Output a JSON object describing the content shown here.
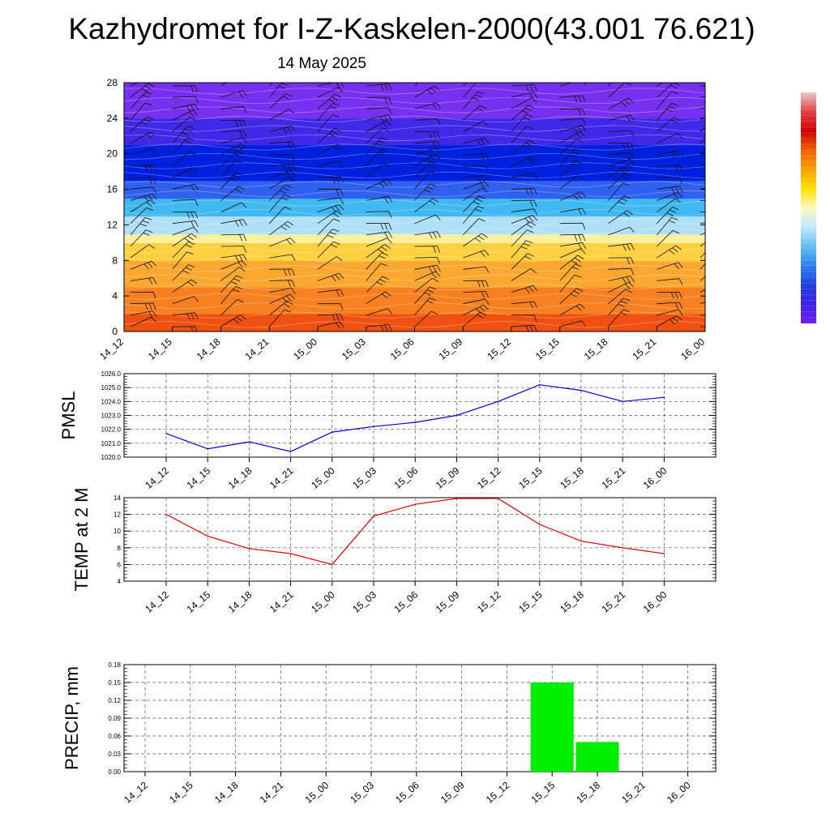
{
  "page": {
    "title": "Kazhydromet for I-Z-Kaskelen-2000(43.001 76.621)",
    "subtitle": "14 May 2025"
  },
  "chart_data": [
    {
      "type": "heatmap",
      "name": "vertical-cross-section",
      "x_categories": [
        "14_12",
        "14_15",
        "14_18",
        "14_21",
        "15_00",
        "15_03",
        "15_06",
        "15_09",
        "15_12",
        "15_15",
        "15_18",
        "15_21",
        "16_00"
      ],
      "y_ticks": [
        0,
        4,
        8,
        12,
        16,
        20,
        24,
        28
      ],
      "ylim": [
        0,
        28
      ],
      "field_color_bands": [
        {
          "from": 0,
          "to": 2,
          "color": "#f05010"
        },
        {
          "from": 2,
          "to": 5,
          "color": "#f88020"
        },
        {
          "from": 5,
          "to": 8,
          "color": "#fca830"
        },
        {
          "from": 8,
          "to": 10,
          "color": "#ffd040"
        },
        {
          "from": 10,
          "to": 11,
          "color": "#fff0a0"
        },
        {
          "from": 11,
          "to": 13,
          "color": "#b0e0f8"
        },
        {
          "from": 13,
          "to": 15,
          "color": "#40b8f0"
        },
        {
          "from": 15,
          "to": 17,
          "color": "#3060f0"
        },
        {
          "from": 17,
          "to": 21,
          "color": "#0020e0"
        },
        {
          "from": 21,
          "to": 24,
          "color": "#4028e8"
        },
        {
          "from": 24,
          "to": 28,
          "color": "#7830f0"
        }
      ],
      "colorbar_colors": [
        "#f0c8c8",
        "#e04040",
        "#d00000",
        "#f06000",
        "#f8a000",
        "#ffe000",
        "#fff8c0",
        "#c0e8ff",
        "#60c0f0",
        "#3080f0",
        "#2040e0",
        "#4020e8",
        "#7020f0"
      ],
      "wind_barbs": true
    },
    {
      "type": "line",
      "name": "pmsl",
      "ylabel": "PMSL",
      "categories": [
        "14_12",
        "14_15",
        "14_18",
        "14_21",
        "15_00",
        "15_03",
        "15_06",
        "15_09",
        "15_12",
        "15_15",
        "15_18",
        "15_21",
        "16_00"
      ],
      "values": [
        1021.7,
        1020.6,
        1021.1,
        1020.4,
        1021.8,
        1022.2,
        1022.5,
        1023.0,
        1024.0,
        1025.2,
        1024.8,
        1024.0,
        1024.3
      ],
      "y_ticks": [
        "1020.0",
        "1021.0",
        "1022.0",
        "1023.0",
        "1024.0",
        "1025.0",
        "1026.0"
      ],
      "ylim": [
        1020,
        1026
      ],
      "color": "#0000d0",
      "grid": true
    },
    {
      "type": "line",
      "name": "temp",
      "ylabel": "TEMP at 2 M",
      "categories": [
        "14_12",
        "14_15",
        "14_18",
        "14_21",
        "15_00",
        "15_03",
        "15_06",
        "15_09",
        "15_12",
        "15_15",
        "15_18",
        "15_21",
        "16_00"
      ],
      "values": [
        12.0,
        9.4,
        7.9,
        7.3,
        6.0,
        11.8,
        13.2,
        13.9,
        13.9,
        10.8,
        8.8,
        8.0,
        7.3
      ],
      "y_ticks": [
        "4",
        "6",
        "8",
        "10",
        "12",
        "14"
      ],
      "ylim": [
        4,
        14
      ],
      "color": "#e00000",
      "grid": true
    },
    {
      "type": "bar",
      "name": "precip",
      "ylabel": "PRECIP, mm",
      "categories": [
        "14_12",
        "14_15",
        "14_18",
        "14_21",
        "15_00",
        "15_03",
        "15_06",
        "15_09",
        "15_12",
        "15_15",
        "15_18",
        "15_21",
        "16_00"
      ],
      "values": [
        0,
        0,
        0,
        0,
        0,
        0,
        0,
        0,
        0,
        0.15,
        0.05,
        0,
        0
      ],
      "y_ticks": [
        "0.00",
        "0.03",
        "0.06",
        "0.09",
        "0.12",
        "0.15",
        "0.18"
      ],
      "ylim": [
        0,
        0.18
      ],
      "color": "#00ee00",
      "grid": true
    }
  ]
}
